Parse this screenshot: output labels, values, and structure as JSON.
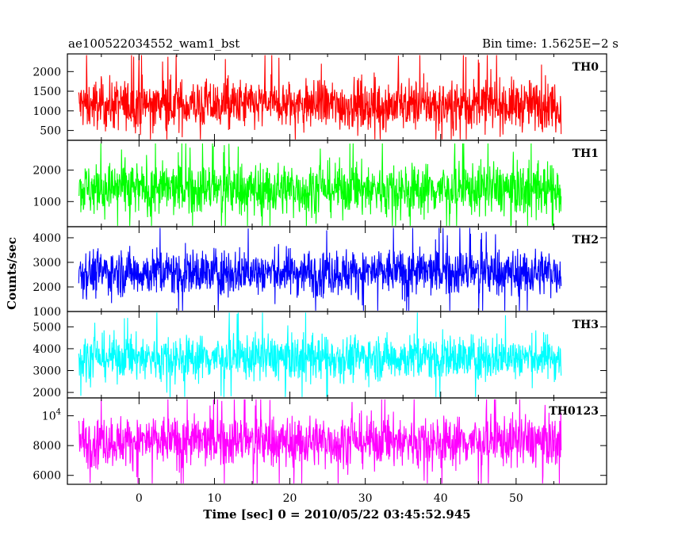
{
  "header": {
    "left_title": "ae100522034552_wam1_bst",
    "right_title": "Bin time: 1.5625E−2 s"
  },
  "chart_data": {
    "type": "line",
    "xlabel": "Time [sec] 0 = 2010/05/22 03:45:52.945",
    "ylabel": "Counts/sec",
    "xlim": [
      -9.5,
      62
    ],
    "x_ticks": [
      0,
      10,
      20,
      30,
      40,
      50
    ],
    "x_tick_labels": [
      "0",
      "10",
      "20",
      "30",
      "40",
      "50"
    ],
    "series_x_range": [
      -8,
      56
    ],
    "bin_time": 0.015625,
    "grid": false,
    "legend": "none",
    "panels": [
      {
        "key": "th0",
        "label": "TH0",
        "color": "#ff0000",
        "ylim": [
          250,
          2450
        ],
        "y_ticks": [
          500,
          1000,
          1500,
          2000
        ],
        "y_tick_labels": [
          "500",
          "1000",
          "1500",
          "2000"
        ],
        "typical_range": [
          400,
          2000
        ],
        "mean": 1150,
        "peak_max": 2420
      },
      {
        "key": "th1",
        "label": "TH1",
        "color": "#00ff00",
        "ylim": [
          200,
          2950
        ],
        "y_ticks": [
          1000,
          2000
        ],
        "y_tick_labels": [
          "1000",
          "2000"
        ],
        "typical_range": [
          400,
          2500
        ],
        "mean": 1400,
        "peak_max": 2850
      },
      {
        "key": "th2",
        "label": "TH2",
        "color": "#0000ff",
        "ylim": [
          1000,
          4450
        ],
        "y_ticks": [
          1000,
          2000,
          3000,
          4000
        ],
        "y_tick_labels": [
          "1000",
          "2000",
          "3000",
          "4000"
        ],
        "typical_range": [
          1500,
          3900
        ],
        "mean": 2600,
        "peak_max": 4400
      },
      {
        "key": "th3",
        "label": "TH3",
        "color": "#00ffff",
        "ylim": [
          1750,
          5700
        ],
        "y_ticks": [
          2000,
          3000,
          4000,
          5000
        ],
        "y_tick_labels": [
          "2000",
          "3000",
          "4000",
          "5000"
        ],
        "typical_range": [
          2400,
          5000
        ],
        "mean": 3600,
        "peak_max": 5650
      },
      {
        "key": "th0123",
        "label": "TH0123",
        "color": "#ff00ff",
        "ylim": [
          5400,
          11200
        ],
        "y_ticks": [
          6000,
          8000,
          10000
        ],
        "y_tick_labels": [
          "6000",
          "8000",
          "10⁴"
        ],
        "typical_range": [
          6200,
          10500
        ],
        "mean": 8300,
        "peak_max": 11100
      }
    ]
  }
}
